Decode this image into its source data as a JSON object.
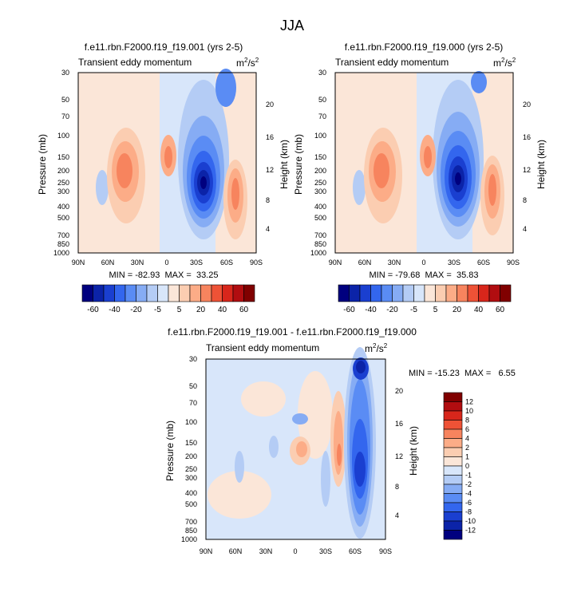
{
  "figure": {
    "title": "JJA"
  },
  "chart_data": [
    {
      "type": "heatmap",
      "title": "f.e11.rbn.F2000.f19_f19.001 (yrs 2-5)",
      "subtitle": "Transient eddy momentum",
      "units": "m2/s2",
      "units_base": "m",
      "units_sup1": "2",
      "units_mid": "/s",
      "units_sup2": "2",
      "xlabel": "",
      "ylabel": "Pressure (mb)",
      "y2label": "Height (km)",
      "x_ticks": [
        "90N",
        "60N",
        "30N",
        "0",
        "30S",
        "60S",
        "90S"
      ],
      "y_ticks": [
        "30",
        "50",
        "70",
        "100",
        "150",
        "200",
        "250",
        "300",
        "400",
        "500",
        "700",
        "850",
        "1000"
      ],
      "y2_ticks": [
        "20",
        "16",
        "12",
        "8",
        "4"
      ],
      "stats": "MIN = -82.93  MAX =  33.25",
      "min": -82.93,
      "max": 33.25,
      "colorbar": {
        "orientation": "horizontal",
        "levels": [
          "-60",
          "-40",
          "-20",
          "-5",
          "5",
          "20",
          "40",
          "60"
        ],
        "colors": [
          "#00007f",
          "#0b23a8",
          "#1a3fd0",
          "#3366ee",
          "#5a8cf4",
          "#86acf4",
          "#b4ccf5",
          "#d8e6fa",
          "#fbe6d8",
          "#fbcdb1",
          "#fcac87",
          "#f7845e",
          "#ee5236",
          "#d8261b",
          "#b10d10",
          "#800000"
        ]
      }
    },
    {
      "type": "heatmap",
      "title": "f.e11.rbn.F2000.f19_f19.000 (yrs 2-5)",
      "subtitle": "Transient eddy momentum",
      "units": "m2/s2",
      "units_base": "m",
      "units_sup1": "2",
      "units_mid": "/s",
      "units_sup2": "2",
      "xlabel": "",
      "ylabel": "Pressure (mb)",
      "y2label": "Height (km)",
      "x_ticks": [
        "90N",
        "60N",
        "30N",
        "0",
        "30S",
        "60S",
        "90S"
      ],
      "y_ticks": [
        "30",
        "50",
        "70",
        "100",
        "150",
        "200",
        "250",
        "300",
        "400",
        "500",
        "700",
        "850",
        "1000"
      ],
      "y2_ticks": [
        "20",
        "16",
        "12",
        "8",
        "4"
      ],
      "stats": "MIN = -79.68  MAX =  35.83",
      "min": -79.68,
      "max": 35.83,
      "colorbar": {
        "orientation": "horizontal",
        "levels": [
          "-60",
          "-40",
          "-20",
          "-5",
          "5",
          "20",
          "40",
          "60"
        ],
        "colors": [
          "#00007f",
          "#0b23a8",
          "#1a3fd0",
          "#3366ee",
          "#5a8cf4",
          "#86acf4",
          "#b4ccf5",
          "#d8e6fa",
          "#fbe6d8",
          "#fbcdb1",
          "#fcac87",
          "#f7845e",
          "#ee5236",
          "#d8261b",
          "#b10d10",
          "#800000"
        ]
      }
    },
    {
      "type": "heatmap",
      "title": "f.e11.rbn.F2000.f19_f19.001 - f.e11.rbn.F2000.f19_f19.000",
      "subtitle": "Transient eddy momentum",
      "units": "m2/s2",
      "units_base": "m",
      "units_sup1": "2",
      "units_mid": "/s",
      "units_sup2": "2",
      "xlabel": "",
      "ylabel": "Pressure (mb)",
      "y2label": "Height (km)",
      "x_ticks": [
        "90N",
        "60N",
        "30N",
        "0",
        "30S",
        "60S",
        "90S"
      ],
      "y_ticks": [
        "30",
        "50",
        "70",
        "100",
        "150",
        "200",
        "250",
        "300",
        "400",
        "500",
        "700",
        "850",
        "1000"
      ],
      "y2_ticks": [
        "20",
        "16",
        "12",
        "8",
        "4"
      ],
      "stats": "MIN = -15.23  MAX =   6.55",
      "min": -15.23,
      "max": 6.55,
      "colorbar": {
        "orientation": "vertical",
        "levels": [
          "12",
          "10",
          "8",
          "6",
          "4",
          "2",
          "1",
          "0",
          "-1",
          "-2",
          "-4",
          "-6",
          "-8",
          "-10",
          "-12"
        ],
        "colors": [
          "#800000",
          "#b10d10",
          "#d8261b",
          "#ee5236",
          "#f7845e",
          "#fcac87",
          "#fbcdb1",
          "#fbe6d8",
          "#d8e6fa",
          "#b4ccf5",
          "#86acf4",
          "#5a8cf4",
          "#3366ee",
          "#1a3fd0",
          "#0b23a8",
          "#00007f"
        ]
      }
    }
  ]
}
